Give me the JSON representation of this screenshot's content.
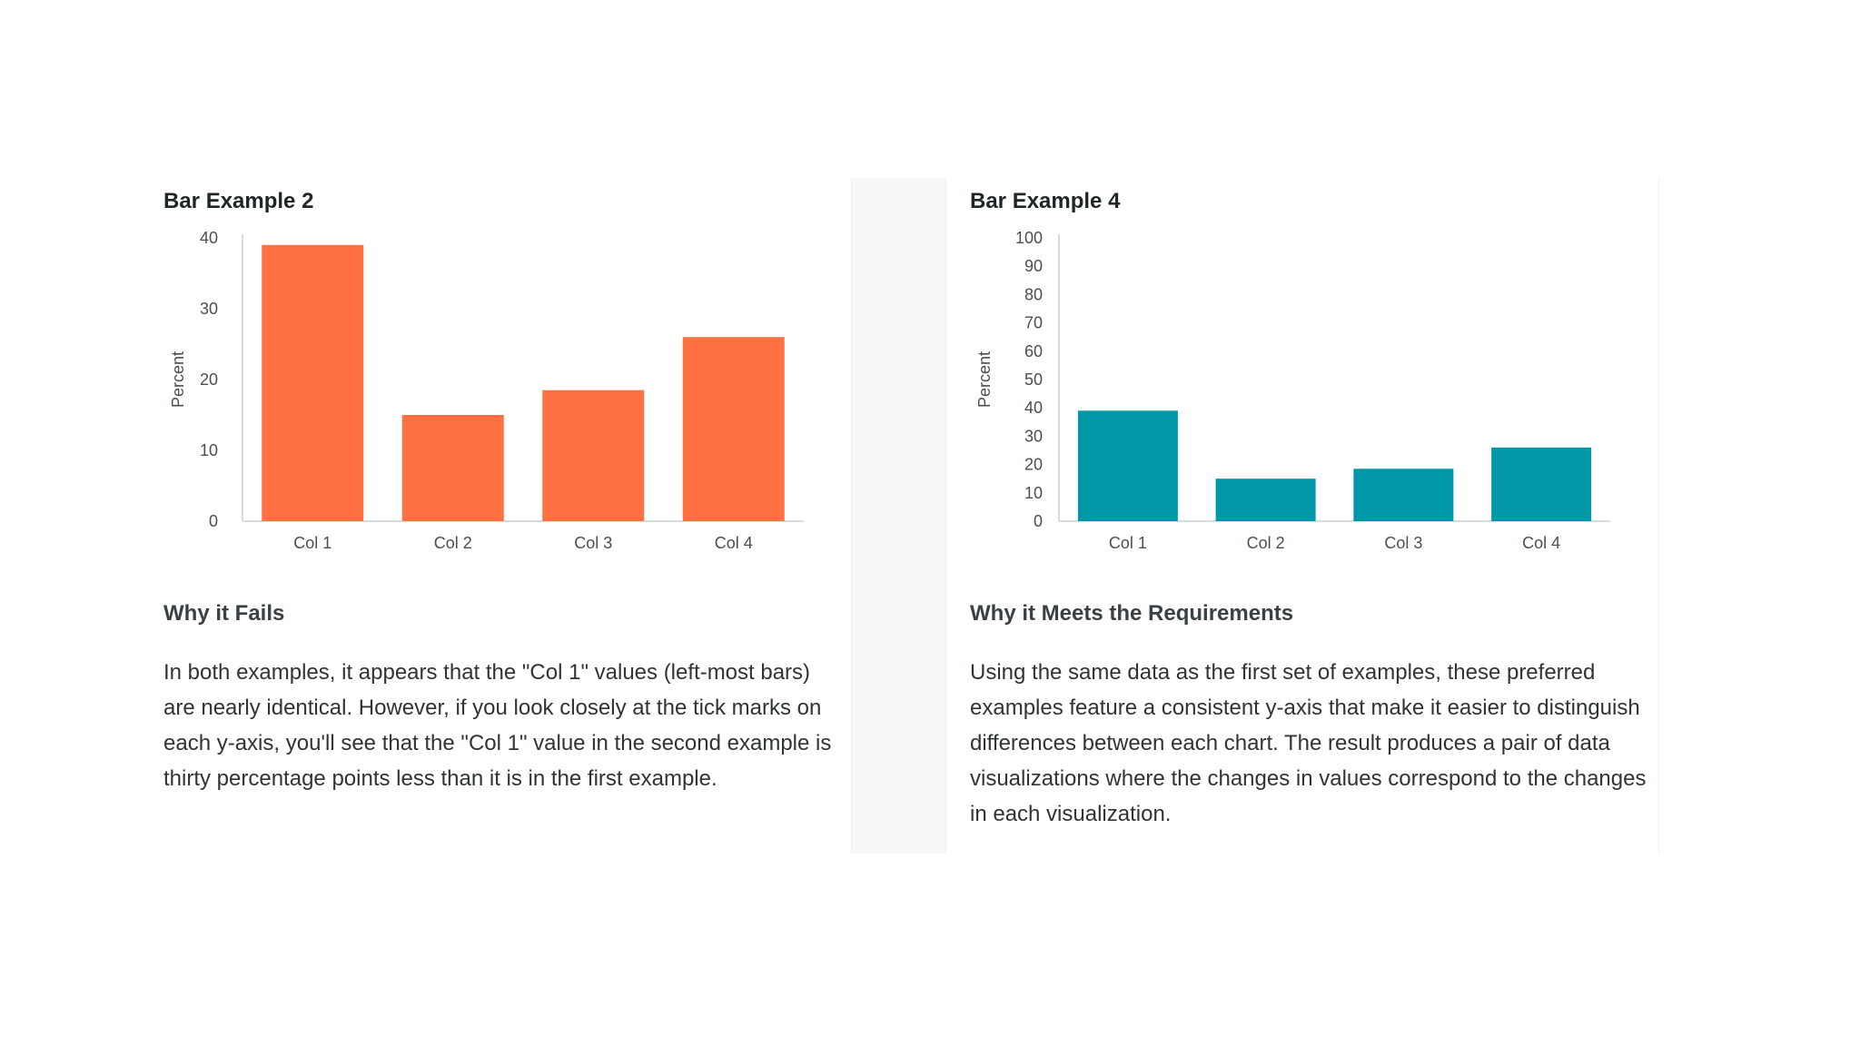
{
  "colors": {
    "bar_left": "#ff7043",
    "bar_right": "#0097a7",
    "axis": "#d9dcdd",
    "tick_text": "#4a4f51"
  },
  "left": {
    "title": "Bar Example 2",
    "heading": "Why it Fails",
    "body": "In both examples, it appears that the \"Col 1\" values (left-most bars) are nearly identical. However, if you look closely at the tick marks on each y-axis, you'll see that the \"Col 1\" value in the second example is thirty percentage points less than it is in the first example."
  },
  "right": {
    "title": "Bar Example 4",
    "heading": "Why it Meets the Requirements",
    "body": "Using the same data as the first set of examples, these preferred examples feature a consistent y-axis that make it easier to distinguish differences between each chart. The result produces a pair of data visualizations where the changes in values correspond to the changes in each visualization."
  },
  "chart_data": [
    {
      "type": "bar",
      "title": "Bar Example 2",
      "categories": [
        "Col 1",
        "Col 2",
        "Col 3",
        "Col 4"
      ],
      "values": [
        39,
        15,
        18.5,
        26
      ],
      "xlabel": "",
      "ylabel": "Percent",
      "ylim": [
        0,
        40
      ],
      "yticks": [
        0,
        10,
        20,
        30,
        40
      ],
      "grid": false,
      "legend": "none"
    },
    {
      "type": "bar",
      "title": "Bar Example 4",
      "categories": [
        "Col 1",
        "Col 2",
        "Col 3",
        "Col 4"
      ],
      "values": [
        39,
        15,
        18.5,
        26
      ],
      "xlabel": "",
      "ylabel": "Percent",
      "ylim": [
        0,
        100
      ],
      "yticks": [
        0,
        10,
        20,
        30,
        40,
        50,
        60,
        70,
        80,
        90,
        100
      ],
      "grid": false,
      "legend": "none"
    }
  ]
}
